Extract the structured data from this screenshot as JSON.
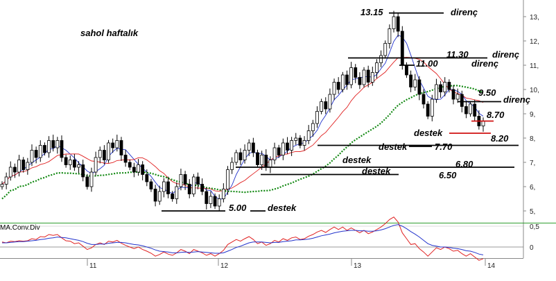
{
  "chart_data": [
    {
      "type": "candlestick",
      "title": "sahol haftalık",
      "ylim": [
        4.5,
        13.8
      ],
      "y_ticks": [
        "5,",
        "6,",
        "7,",
        "8,",
        "9,",
        "10,",
        "11,",
        "12,",
        "13,"
      ],
      "x_ticks": [
        "11",
        "12",
        "13",
        "14"
      ],
      "annotations": [
        {
          "price": "13.15",
          "label": "direnç"
        },
        {
          "price": "11.30",
          "label": "direnç"
        },
        {
          "price": "11.00",
          "label": "direnç"
        },
        {
          "price": "9.50",
          "label": "direnç"
        },
        {
          "price": "8.70",
          "label": ""
        },
        {
          "price": "8.20",
          "label": "destek"
        },
        {
          "price": "7.70",
          "label": "destek"
        },
        {
          "price": "6.80",
          "label": "destek"
        },
        {
          "price": "6.50",
          "label": "destek"
        },
        {
          "price": "5.00",
          "label": "destek"
        }
      ],
      "levels": [
        13.15,
        11.3,
        11.0,
        9.5,
        8.7,
        8.2,
        7.7,
        6.8,
        6.5,
        5.0
      ],
      "close": [
        6.1,
        6.4,
        6.8,
        6.6,
        7.1,
        6.7,
        7.0,
        7.5,
        7.2,
        7.7,
        7.4,
        7.9,
        7.6,
        7.9,
        7.2,
        6.9,
        7.1,
        6.8,
        6.9,
        6.4,
        6.0,
        6.6,
        7.2,
        7.5,
        7.1,
        7.8,
        7.6,
        7.9,
        7.3,
        7.0,
        6.8,
        6.6,
        6.9,
        6.5,
        6.2,
        5.9,
        5.4,
        5.8,
        6.2,
        5.7,
        5.5,
        6.0,
        6.5,
        6.1,
        5.7,
        6.4,
        6.1,
        5.8,
        5.3,
        5.6,
        5.2,
        5.5,
        5.9,
        6.7,
        7.0,
        7.4,
        7.1,
        7.5,
        7.8,
        7.4,
        6.9,
        7.3,
        6.8,
        7.1,
        7.6,
        7.3,
        7.8,
        7.5,
        7.9,
        8.0,
        7.7,
        7.9,
        8.3,
        8.6,
        9.1,
        9.5,
        9.2,
        9.8,
        10.3,
        10.0,
        10.6,
        10.2,
        10.9,
        10.5,
        10.2,
        10.8,
        10.3,
        10.7,
        11.1,
        11.4,
        11.9,
        12.5,
        13.0,
        12.4,
        11.0,
        10.6,
        10.1,
        10.4,
        9.8,
        9.4,
        8.9,
        9.6,
        10.2,
        9.9,
        10.3,
        10.0,
        9.6,
        9.8,
        9.3,
        9.0,
        9.4,
        8.9,
        8.5,
        8.7
      ],
      "panels": [
        {
          "name": "MA.Conv.Div",
          "type": "line",
          "y_ticks": [
            "0,5",
            "0"
          ],
          "series": [
            {
              "values": [
                0.12,
                0.1,
                0.14,
                0.13,
                0.15,
                0.14,
                0.15,
                0.2,
                0.18,
                0.25,
                0.24,
                0.3,
                0.28,
                0.3,
                0.22,
                0.15,
                0.14,
                0.08,
                0.1,
                0.02,
                -0.06,
                -0.02,
                0.06,
                0.1,
                0.06,
                0.14,
                0.12,
                0.16,
                0.09,
                0.04,
                0.0,
                -0.04,
                0.0,
                -0.06,
                -0.1,
                -0.15,
                -0.22,
                -0.18,
                -0.12,
                -0.17,
                -0.2,
                -0.14,
                -0.06,
                -0.1,
                -0.16,
                -0.06,
                -0.1,
                -0.14,
                -0.2,
                -0.16,
                -0.22,
                -0.16,
                -0.08,
                0.06,
                0.12,
                0.18,
                0.14,
                0.2,
                0.25,
                0.18,
                0.08,
                0.12,
                0.04,
                0.08,
                0.16,
                0.12,
                0.2,
                0.16,
                0.22,
                0.24,
                0.18,
                0.2,
                0.26,
                0.3,
                0.36,
                0.4,
                0.35,
                0.42,
                0.48,
                0.42,
                0.48,
                0.4,
                0.46,
                0.4,
                0.34,
                0.4,
                0.32,
                0.36,
                0.42,
                0.48,
                0.56,
                0.66,
                0.72,
                0.6,
                0.34,
                0.2,
                0.06,
                0.08,
                -0.04,
                -0.12,
                -0.22,
                -0.12,
                -0.02,
                -0.06,
                0.0,
                -0.04,
                -0.1,
                -0.08,
                -0.16,
                -0.22,
                -0.16,
                -0.24,
                -0.32,
                -0.28
              ]
            },
            {
              "values": [
                0.1,
                0.1,
                0.11,
                0.12,
                0.13,
                0.13,
                0.14,
                0.15,
                0.16,
                0.18,
                0.19,
                0.21,
                0.22,
                0.24,
                0.23,
                0.22,
                0.2,
                0.18,
                0.16,
                0.13,
                0.09,
                0.06,
                0.06,
                0.07,
                0.07,
                0.09,
                0.1,
                0.11,
                0.11,
                0.1,
                0.08,
                0.06,
                0.05,
                0.03,
                0.0,
                -0.03,
                -0.07,
                -0.1,
                -0.11,
                -0.12,
                -0.14,
                -0.14,
                -0.13,
                -0.12,
                -0.13,
                -0.12,
                -0.11,
                -0.12,
                -0.13,
                -0.14,
                -0.15,
                -0.15,
                -0.14,
                -0.1,
                -0.06,
                -0.01,
                0.02,
                0.06,
                0.1,
                0.12,
                0.12,
                0.12,
                0.11,
                0.1,
                0.11,
                0.11,
                0.13,
                0.14,
                0.15,
                0.17,
                0.17,
                0.18,
                0.19,
                0.21,
                0.24,
                0.27,
                0.29,
                0.31,
                0.34,
                0.36,
                0.38,
                0.39,
                0.4,
                0.4,
                0.39,
                0.39,
                0.38,
                0.38,
                0.39,
                0.41,
                0.44,
                0.48,
                0.52,
                0.54,
                0.5,
                0.44,
                0.37,
                0.31,
                0.24,
                0.16,
                0.08,
                0.04,
                0.02,
                0.0,
                0.0,
                -0.01,
                -0.03,
                -0.04,
                -0.06,
                -0.09,
                -0.1,
                -0.13,
                -0.17,
                -0.19
              ]
            }
          ]
        }
      ]
    }
  ]
}
